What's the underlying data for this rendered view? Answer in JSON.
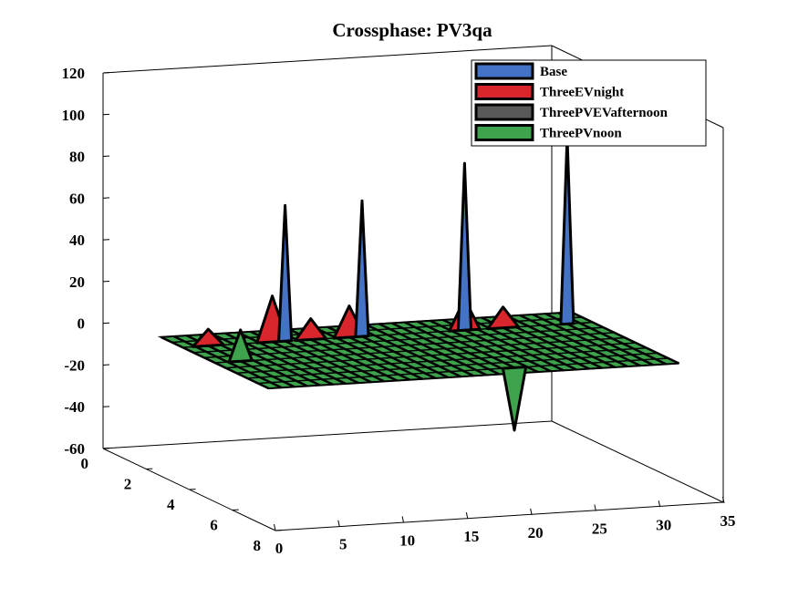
{
  "chart_data": {
    "type": "surface3d",
    "title": "Crossphase: PV3qa",
    "xlabel": "",
    "ylabel": "",
    "zlabel": "",
    "xlim": [
      0,
      35
    ],
    "ylim": [
      0,
      8
    ],
    "zlim": [
      -60,
      120
    ],
    "x_ticks": [
      "0",
      "5",
      "10",
      "15",
      "20",
      "25",
      "30",
      "35"
    ],
    "y_ticks": [
      "0",
      "2",
      "4",
      "6",
      "8"
    ],
    "z_ticks": [
      "120",
      "100",
      "80",
      "60",
      "40",
      "20",
      "0",
      "-20",
      "-40",
      "-60"
    ],
    "legend": {
      "placement": "top-right",
      "entries": [
        "Base",
        "ThreeEVnight",
        "ThreePVEVafternoon",
        "ThreePVnoon"
      ]
    },
    "series": [
      {
        "name": "Base",
        "color": "#4472c4",
        "peaks": [
          {
            "x": 10,
            "y": 2.5,
            "z": 65
          },
          {
            "x": 16,
            "y": 2.5,
            "z": 65
          },
          {
            "x": 24,
            "y": 2.5,
            "z": 80
          },
          {
            "x": 32,
            "y": 2.5,
            "z": 90
          }
        ]
      },
      {
        "name": "ThreeEVnight",
        "color": "#d9262c",
        "peaks": [
          {
            "x": 4,
            "y": 2.5,
            "z": 8
          },
          {
            "x": 9,
            "y": 2.5,
            "z": 22
          },
          {
            "x": 12,
            "y": 2.5,
            "z": 10
          },
          {
            "x": 15,
            "y": 2.5,
            "z": 15
          },
          {
            "x": 24,
            "y": 2.5,
            "z": 15
          },
          {
            "x": 27,
            "y": 2.5,
            "z": 10
          }
        ]
      },
      {
        "name": "ThreePVEVafternoon",
        "color": "#595959",
        "peaks": []
      },
      {
        "name": "ThreePVnoon",
        "color": "#3fa34d",
        "peaks": [
          {
            "x": 4,
            "y": 4,
            "z": 15
          },
          {
            "x": 22,
            "y": 6,
            "z": -30
          }
        ]
      }
    ],
    "grid": "off"
  }
}
